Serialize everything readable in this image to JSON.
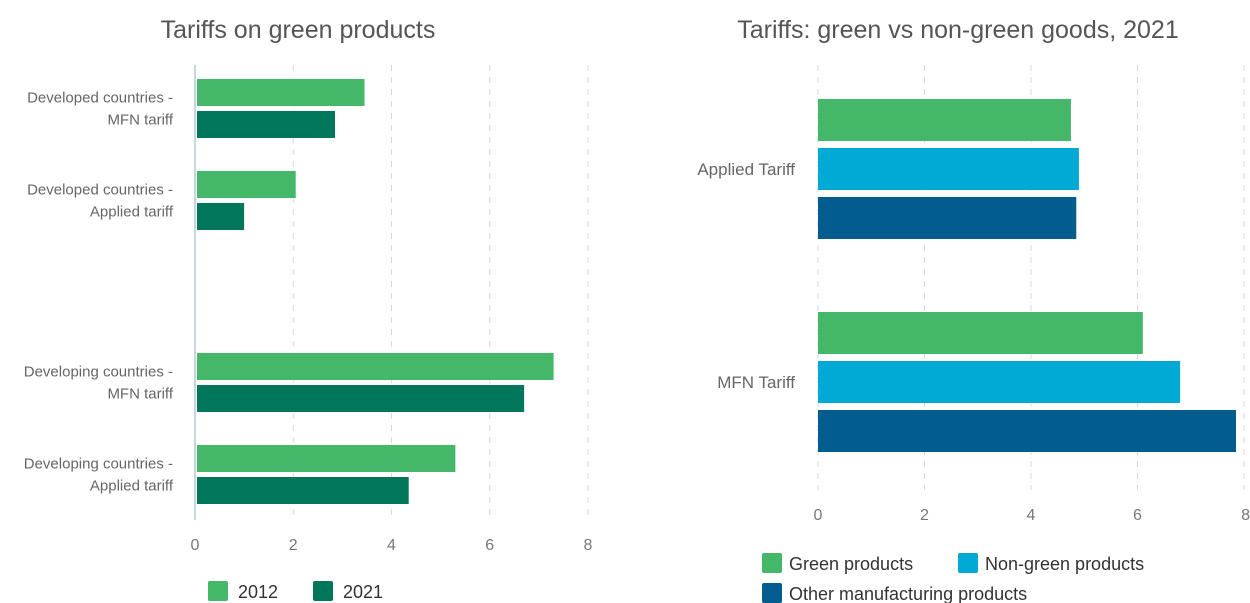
{
  "chart_data": [
    {
      "type": "bar",
      "orientation": "horizontal",
      "title": "Tariffs on green products",
      "categories": [
        [
          "Developed countries -",
          "MFN tariff"
        ],
        [
          "Developed countries -",
          "Applied tariff"
        ],
        [
          "Developing countries -",
          "MFN tariff"
        ],
        [
          "Developing countries -",
          "Applied tariff"
        ]
      ],
      "series": [
        {
          "name": "2012",
          "color": "#44b868",
          "values": [
            3.45,
            2.05,
            7.3,
            5.3
          ]
        },
        {
          "name": "2021",
          "color": "#00775a",
          "values": [
            2.85,
            1.0,
            6.7,
            4.35
          ]
        }
      ],
      "xlim": [
        0,
        8
      ],
      "ticks": [
        "0",
        "2",
        "4",
        "6",
        "8"
      ],
      "grid": true,
      "legend": "bottom"
    },
    {
      "type": "bar",
      "orientation": "horizontal",
      "title": "Tariffs: green vs non-green goods, 2021",
      "categories": [
        "Applied Tariff",
        "MFN Tariff"
      ],
      "series": [
        {
          "name": "Green products",
          "color": "#44b868",
          "values": [
            4.75,
            6.1
          ]
        },
        {
          "name": "Non-green products",
          "color": "#00aad4",
          "values": [
            4.9,
            6.8
          ]
        },
        {
          "name": "Other manufacturing products",
          "color": "#005d8e",
          "values": [
            4.85,
            7.85
          ]
        }
      ],
      "xlim": [
        0,
        8
      ],
      "ticks": [
        "0",
        "2",
        "4",
        "6",
        "8"
      ],
      "grid": true,
      "legend": "bottom"
    }
  ]
}
